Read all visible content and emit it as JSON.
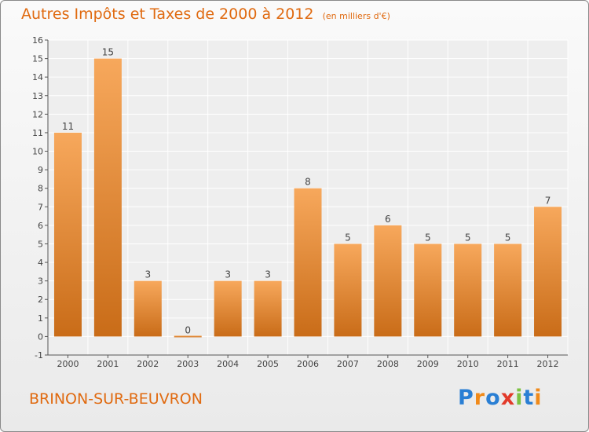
{
  "title": "Autres Impôts et Taxes de 2000 à 2012",
  "subtitle": "(en milliers d'€)",
  "town": "BRINON-SUR-BEUVRON",
  "brand": {
    "letters": [
      "P",
      "r",
      "o",
      "x",
      "i",
      "t",
      "i"
    ],
    "colors": [
      "#2a7fd4",
      "#f08a1a",
      "#2a7fd4",
      "#e23a2a",
      "#7cc242",
      "#2a7fd4",
      "#f08a1a"
    ]
  },
  "colors": {
    "bar_top": "#f7a85c",
    "bar_bottom": "#c96c18",
    "text": "#e06a10",
    "axis": "#555555"
  },
  "chart_data": {
    "type": "bar",
    "categories": [
      "2000",
      "2001",
      "2002",
      "2003",
      "2004",
      "2005",
      "2006",
      "2007",
      "2008",
      "2009",
      "2010",
      "2011",
      "2012"
    ],
    "values": [
      11,
      15,
      3,
      0,
      3,
      3,
      8,
      5,
      6,
      5,
      5,
      5,
      7
    ],
    "ylim": [
      -1,
      16
    ],
    "yticks": [
      -1,
      0,
      1,
      2,
      3,
      4,
      5,
      6,
      7,
      8,
      9,
      10,
      11,
      12,
      13,
      14,
      15,
      16
    ],
    "grid": true
  }
}
